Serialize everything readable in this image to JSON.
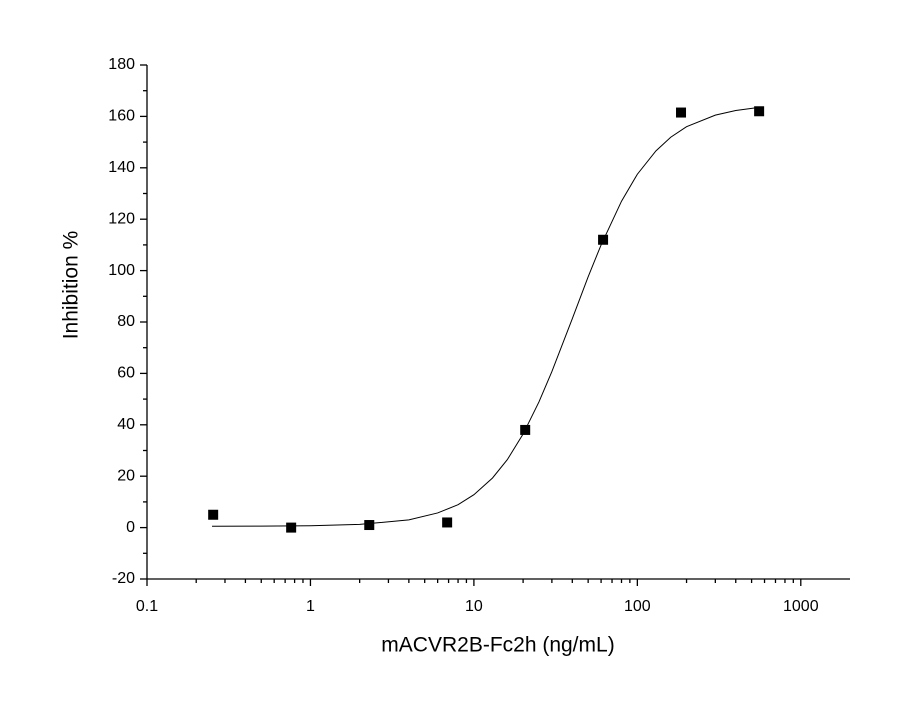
{
  "chart_data": {
    "type": "scatter",
    "x_label": "mACVR2B-Fc2h (ng/mL)",
    "y_label": "Inhibition %",
    "x": [
      0.254,
      0.762,
      2.29,
      6.86,
      20.6,
      61.7,
      185,
      556
    ],
    "values": [
      5,
      0,
      1,
      2,
      38,
      112,
      161.5,
      162
    ],
    "color": "#000000",
    "curve": {
      "x": [
        0.25,
        0.5,
        1,
        2,
        4,
        6,
        8,
        10,
        13,
        16,
        20,
        25,
        30,
        40,
        50,
        60,
        80,
        100,
        130,
        160,
        200,
        300,
        400,
        556
      ],
      "values": [
        0.52,
        0.56,
        0.72,
        1.24,
        3.0,
        5.7,
        8.9,
        12.8,
        19.3,
        26.4,
        36.4,
        48.9,
        60.7,
        81.3,
        97.6,
        110.0,
        127.0,
        137.5,
        146.6,
        151.9,
        156.0,
        160.5,
        162.3,
        163.5
      ]
    },
    "xscale": "log",
    "xlim": [
      0.1,
      2000
    ],
    "xticks": [
      0.1,
      1,
      10,
      100,
      1000
    ],
    "xminorticks": [
      0.2,
      0.3,
      0.4,
      0.5,
      0.6,
      0.7,
      0.8,
      0.9,
      2,
      3,
      4,
      5,
      6,
      7,
      8,
      9,
      20,
      30,
      40,
      50,
      60,
      70,
      80,
      90,
      200,
      300,
      400,
      500,
      600,
      700,
      800,
      900
    ],
    "ylim": [
      -20,
      180
    ],
    "yticks": [
      -20,
      0,
      20,
      40,
      60,
      80,
      100,
      120,
      140,
      160,
      180
    ],
    "yminorticks": [
      -10,
      10,
      30,
      50,
      70,
      90,
      110,
      130,
      150,
      170
    ],
    "grid": false
  }
}
